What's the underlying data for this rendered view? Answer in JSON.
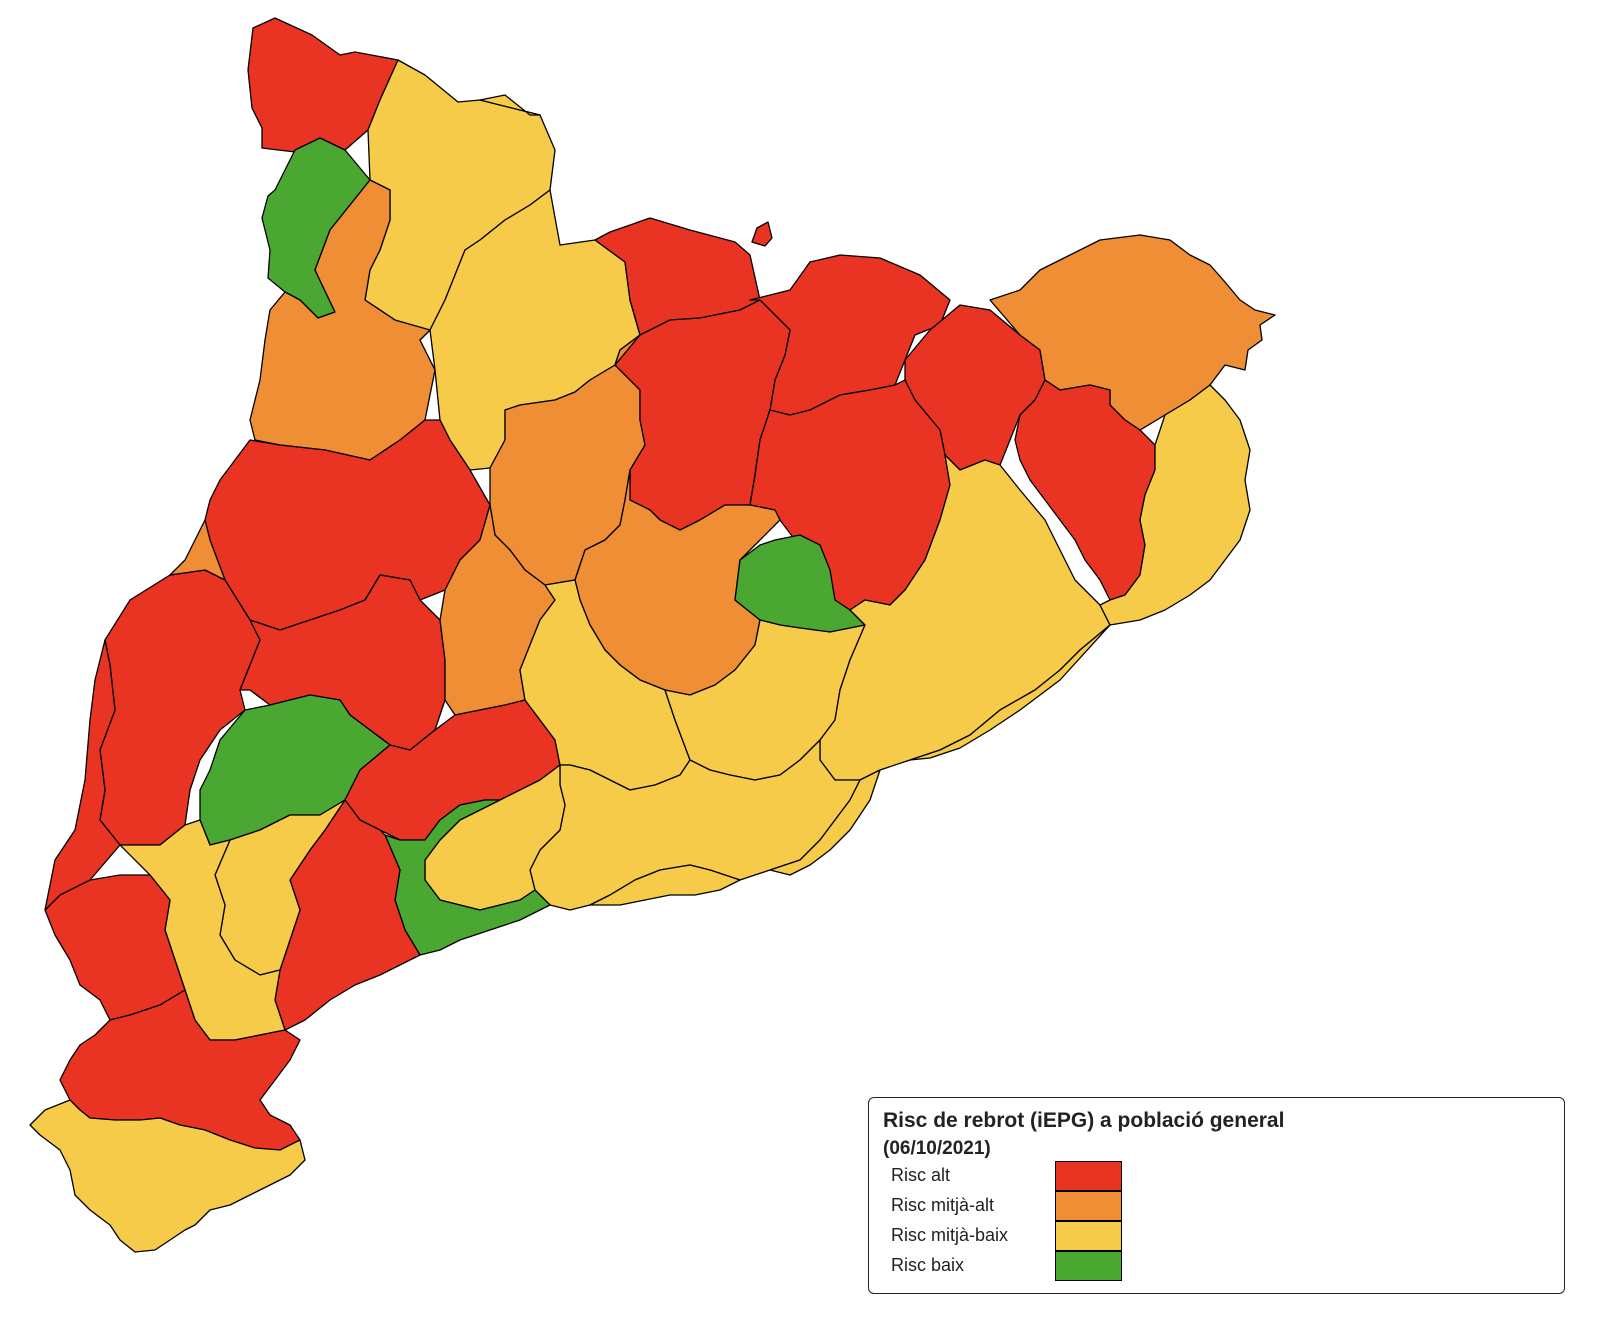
{
  "colors": {
    "risc_alt": "#e93424",
    "risc_mitja_alt": "#ef8e35",
    "risc_mitja_baix": "#f7cb4a",
    "risc_baix": "#4aa832",
    "border": "#000000"
  },
  "legend": {
    "title": "Risc de rebrot (iEPG) a població general",
    "date": "(06/10/2021)",
    "items": [
      {
        "label": "Risc alt",
        "level": "risc_alt"
      },
      {
        "label": "Risc mitjà-alt",
        "level": "risc_mitja_alt"
      },
      {
        "label": "Risc mitjà-baix",
        "level": "risc_mitja_baix"
      },
      {
        "label": "Risc baix",
        "level": "risc_baix"
      }
    ]
  },
  "regions": [
    {
      "id": "r01",
      "level": "risc_alt"
    },
    {
      "id": "r02",
      "level": "risc_mitja_baix"
    },
    {
      "id": "r03",
      "level": "risc_baix"
    },
    {
      "id": "r04",
      "level": "risc_mitja_alt"
    },
    {
      "id": "r05",
      "level": "risc_mitja_alt"
    },
    {
      "id": "r06",
      "level": "risc_mitja_baix"
    },
    {
      "id": "r07",
      "level": "risc_alt"
    },
    {
      "id": "r08",
      "level": "risc_alt"
    },
    {
      "id": "r09",
      "level": "risc_alt"
    },
    {
      "id": "r10",
      "level": "risc_mitja_alt"
    },
    {
      "id": "r11",
      "level": "risc_alt"
    },
    {
      "id": "r12",
      "level": "risc_alt"
    },
    {
      "id": "r13",
      "level": "risc_alt"
    },
    {
      "id": "r14",
      "level": "risc_mitja_alt"
    },
    {
      "id": "r15",
      "level": "risc_mitja_alt"
    },
    {
      "id": "r16",
      "level": "risc_mitja_baix"
    },
    {
      "id": "r17",
      "level": "risc_alt"
    },
    {
      "id": "r18",
      "level": "risc_mitja_alt"
    },
    {
      "id": "r19",
      "level": "risc_alt"
    },
    {
      "id": "r20",
      "level": "risc_baix"
    },
    {
      "id": "r21",
      "level": "risc_mitja_baix"
    },
    {
      "id": "r22",
      "level": "risc_mitja_baix"
    },
    {
      "id": "r23",
      "level": "risc_mitja_baix"
    },
    {
      "id": "r24",
      "level": "risc_baix"
    },
    {
      "id": "r25",
      "level": "risc_mitja_baix"
    },
    {
      "id": "r26",
      "level": "risc_mitja_baix"
    },
    {
      "id": "r27",
      "level": "risc_mitja_baix"
    },
    {
      "id": "r28",
      "level": "risc_mitja_baix"
    },
    {
      "id": "r29",
      "level": "risc_mitja_baix"
    },
    {
      "id": "r30",
      "level": "risc_baix"
    },
    {
      "id": "r31",
      "level": "risc_alt"
    },
    {
      "id": "r32",
      "level": "risc_mitja_baix"
    },
    {
      "id": "r33",
      "level": "risc_mitja_baix"
    },
    {
      "id": "r34",
      "level": "risc_alt"
    },
    {
      "id": "r35",
      "level": "risc_alt"
    },
    {
      "id": "r36",
      "level": "risc_alt"
    },
    {
      "id": "r37",
      "level": "risc_mitja_baix"
    },
    {
      "id": "r38",
      "level": "risc_alt"
    },
    {
      "id": "r39",
      "level": "risc_mitja_baix"
    },
    {
      "id": "r40",
      "level": "risc_alt"
    },
    {
      "id": "r41",
      "level": "risc_mitja_alt"
    }
  ]
}
